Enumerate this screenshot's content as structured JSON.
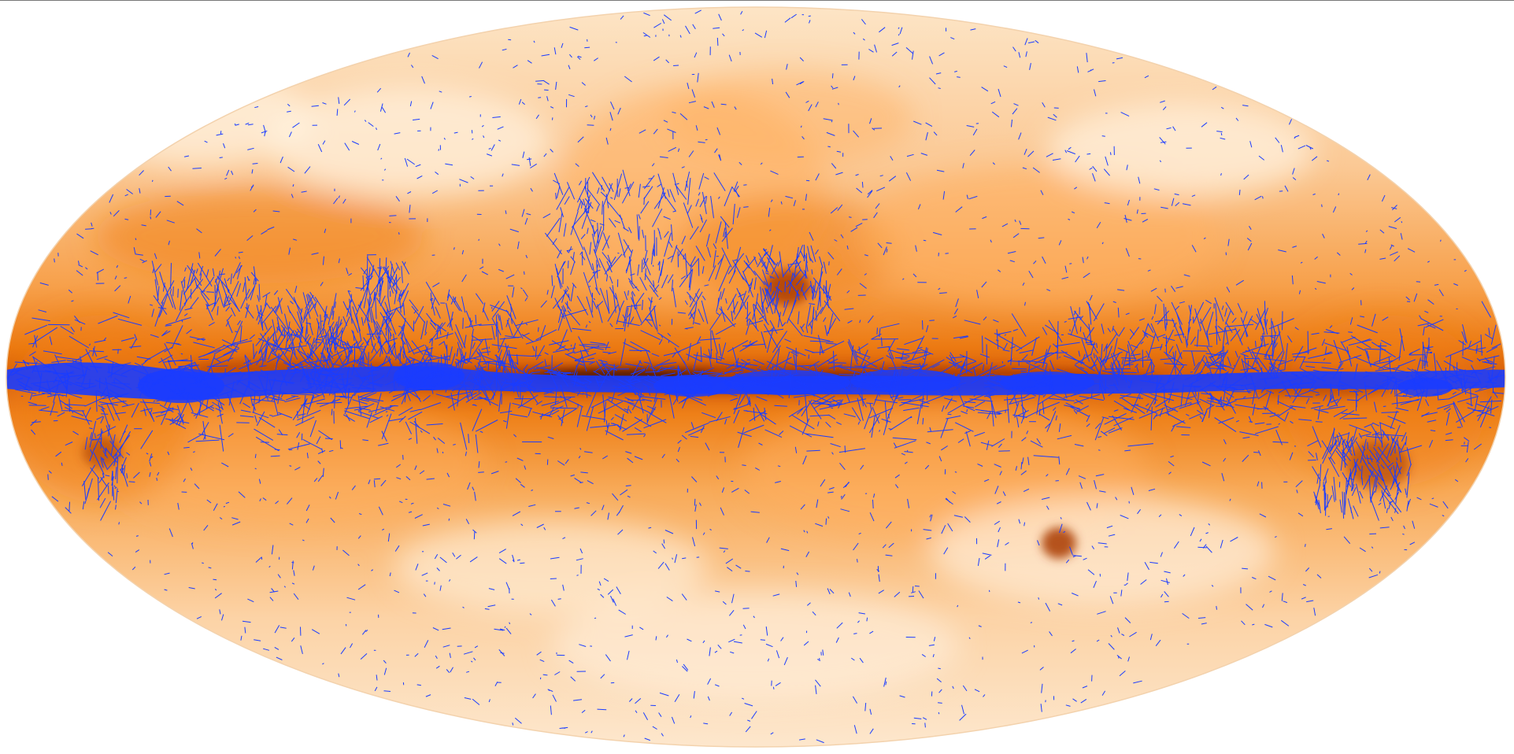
{
  "image": {
    "kind": "all-sky map, Mollweide projection",
    "background_color": "#ffffff",
    "colors": {
      "dust_light": "#fff3e3",
      "dust_mid": "#ffb060",
      "dust_strong": "#f07f10",
      "dust_dense": "#a83a05",
      "dust_core": "#3a0d02",
      "polarization_vectors": "#1a3cff"
    }
  }
}
